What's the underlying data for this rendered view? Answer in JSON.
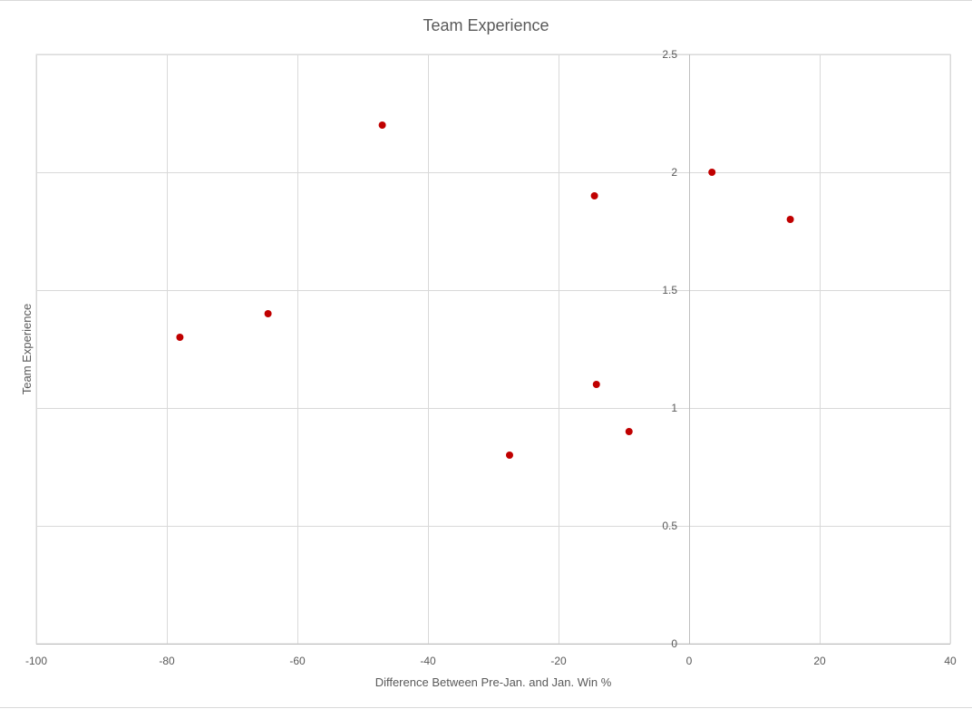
{
  "chart_data": {
    "type": "scatter",
    "title": "Team Experience",
    "xlabel": "Difference Between Pre-Jan. and Jan. Win %",
    "ylabel": "Team Experience",
    "xlim": [
      -100,
      40
    ],
    "ylim": [
      0,
      2.5
    ],
    "x_ticks": [
      -100,
      -80,
      -60,
      -40,
      -20,
      0,
      20,
      40
    ],
    "y_ticks": [
      0,
      0.5,
      1,
      1.5,
      2,
      2.5
    ],
    "x_tick_labels": [
      "-100",
      "-80",
      "-60",
      "-40",
      "-20",
      "0",
      "20",
      "40"
    ],
    "y_tick_labels": [
      "0",
      "0.5",
      "1",
      "1.5",
      "2",
      "2.5"
    ],
    "grid": true,
    "legend": "none",
    "marker_color": "#C00000",
    "points": [
      {
        "x": -78,
        "y": 1.3
      },
      {
        "x": -64.5,
        "y": 1.4
      },
      {
        "x": -47,
        "y": 2.2
      },
      {
        "x": -27.5,
        "y": 0.8
      },
      {
        "x": -14.5,
        "y": 1.9
      },
      {
        "x": -14.2,
        "y": 1.1
      },
      {
        "x": -9.2,
        "y": 0.9
      },
      {
        "x": 3.5,
        "y": 2.0
      },
      {
        "x": 15.5,
        "y": 1.8
      }
    ]
  }
}
